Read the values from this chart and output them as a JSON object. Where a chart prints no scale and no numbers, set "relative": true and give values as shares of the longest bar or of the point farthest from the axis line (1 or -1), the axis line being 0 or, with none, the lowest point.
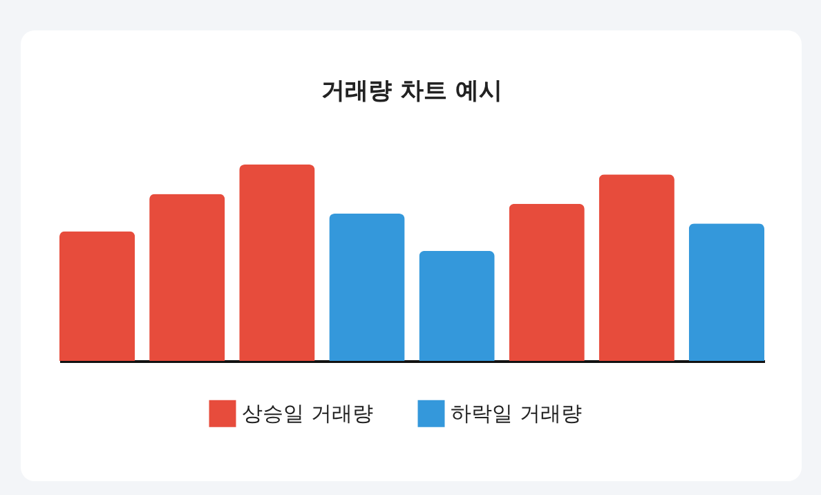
{
  "chart_data": {
    "type": "bar",
    "title": "거래량 차트 예시",
    "relative": true,
    "categories": [
      null,
      null,
      null,
      null,
      null,
      null,
      null,
      null
    ],
    "legend": "bottom",
    "stacked": true,
    "series": [
      {
        "name": "상승일 거래량",
        "color": "#e74c3c",
        "values": [
          0.66,
          0.85,
          1,
          null,
          null,
          0.8,
          0.95,
          null
        ]
      },
      {
        "name": "하락일 거래량",
        "color": "#3498db",
        "values": [
          null,
          null,
          null,
          0.75,
          0.56,
          null,
          null,
          0.7
        ]
      }
    ]
  }
}
